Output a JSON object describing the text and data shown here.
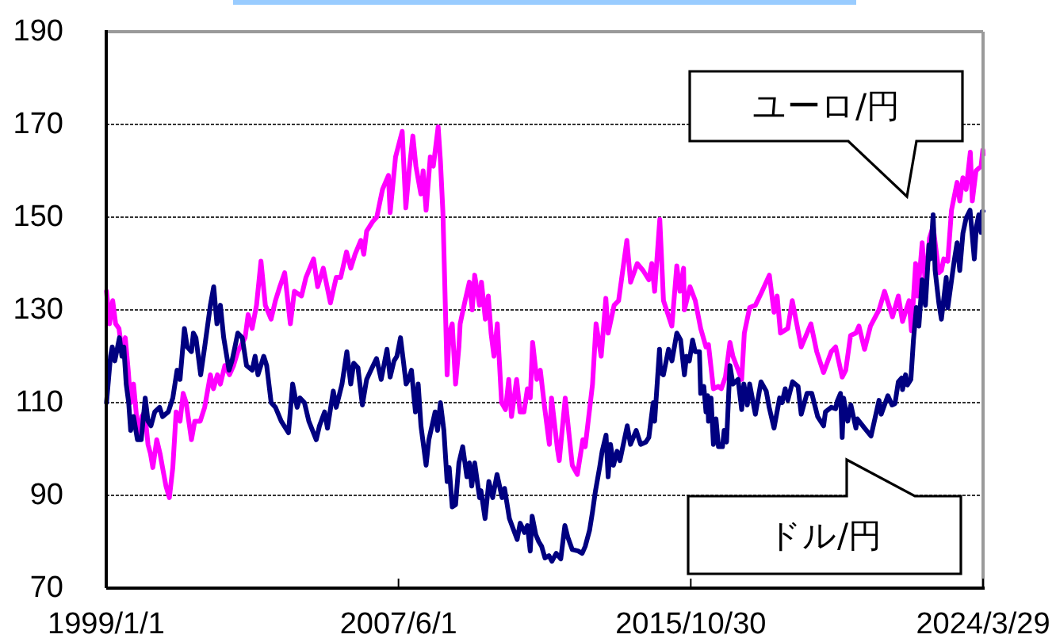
{
  "chart_data": {
    "type": "line",
    "xlim": [
      "1999-01-01",
      "2024-03-29"
    ],
    "xticks": [
      {
        "value": "1999-01-01",
        "label": "1999/1/1"
      },
      {
        "value": "2007-06-01",
        "label": "2007/6/1"
      },
      {
        "value": "2015-10-30",
        "label": "2015/10/30"
      },
      {
        "value": "2024-03-29",
        "label": "2024/3/29"
      }
    ],
    "ylim": [
      70,
      190
    ],
    "yticks": [
      70,
      90,
      110,
      130,
      150,
      170,
      190
    ],
    "grid": "y",
    "series": [
      {
        "name": "ユーロ/円",
        "color": "#ff00ff",
        "x": [
          "1999-01-04",
          "1999-02-05",
          "1999-03-10",
          "1999-04-10",
          "1999-05-15",
          "1999-06-15",
          "1999-07-20",
          "1999-08-20",
          "1999-09-15",
          "1999-10-15",
          "1999-11-20",
          "1999-12-15",
          "2000-01-10",
          "2000-02-10",
          "2000-03-15",
          "2000-04-10",
          "2000-05-05",
          "2000-06-15",
          "2000-07-20",
          "2000-08-15",
          "2000-09-20",
          "2000-10-26",
          "2000-12-01",
          "2001-01-05",
          "2001-02-15",
          "2001-03-20",
          "2001-04-20",
          "2001-06-15",
          "2001-07-20",
          "2001-09-15",
          "2001-11-01",
          "2001-12-31",
          "2002-02-01",
          "2002-03-15",
          "2002-04-15",
          "2002-06-01",
          "2002-07-20",
          "2002-09-01",
          "2002-10-15",
          "2002-12-31",
          "2003-02-01",
          "2003-03-15",
          "2003-04-30",
          "2003-06-16",
          "2003-08-01",
          "2003-09-30",
          "2003-11-15",
          "2003-12-31",
          "2004-02-20",
          "2004-04-20",
          "2004-06-01",
          "2004-08-15",
          "2004-10-01",
          "2004-12-20",
          "2005-02-01",
          "2005-04-01",
          "2005-06-15",
          "2005-08-15",
          "2005-10-01",
          "2005-12-01",
          "2006-01-15",
          "2006-03-01",
          "2006-05-01",
          "2006-06-01",
          "2006-07-01",
          "2006-09-01",
          "2006-10-15",
          "2006-12-15",
          "2007-02-15",
          "2007-03-05",
          "2007-05-01",
          "2007-07-10",
          "2007-08-17",
          "2007-09-20",
          "2007-10-30",
          "2007-12-01",
          "2008-01-22",
          "2008-02-15",
          "2008-03-17",
          "2008-04-30",
          "2008-06-01",
          "2008-07-22",
          "2008-08-15",
          "2008-09-10",
          "2008-10-24",
          "2008-11-15",
          "2008-12-17",
          "2009-01-21",
          "2009-02-25",
          "2009-03-10",
          "2009-05-01",
          "2009-06-15",
          "2009-07-15",
          "2009-08-10",
          "2009-09-30",
          "2009-10-20",
          "2009-11-30",
          "2009-12-31",
          "2010-01-29",
          "2010-03-01",
          "2010-04-05",
          "2010-05-20",
          "2010-06-30",
          "2010-08-03",
          "2010-09-01",
          "2010-10-25",
          "2010-11-30",
          "2011-01-10",
          "2011-02-15",
          "2011-03-17",
          "2011-04-11",
          "2011-05-25",
          "2011-07-01",
          "2011-08-15",
          "2011-10-04",
          "2011-10-27",
          "2011-12-28",
          "2012-01-16",
          "2012-03-19",
          "2012-06-01",
          "2012-07-24",
          "2012-09-20",
          "2012-10-15",
          "2012-12-31",
          "2013-02-06",
          "2013-04-01",
          "2013-05-20",
          "2013-06-13",
          "2013-08-15",
          "2013-10-01",
          "2013-12-27",
          "2014-02-04",
          "2014-04-15",
          "2014-06-15",
          "2014-08-15",
          "2014-09-15",
          "2014-10-15",
          "2014-12-08",
          "2015-01-16",
          "2015-04-14",
          "2015-06-05",
          "2015-07-08",
          "2015-08-15",
          "2015-08-24",
          "2015-10-22",
          "2015-12-16",
          "2016-02-11",
          "2016-04-07",
          "2016-05-03",
          "2016-06-24",
          "2016-08-15",
          "2016-09-15",
          "2016-10-28",
          "2016-12-15",
          "2017-01-15",
          "2017-04-17",
          "2017-05-15",
          "2017-07-10",
          "2017-09-08",
          "2017-11-06",
          "2018-02-02",
          "2018-03-23",
          "2018-04-25",
          "2018-05-30",
          "2018-08-15",
          "2018-10-01",
          "2019-01-03",
          "2019-04-15",
          "2019-06-15",
          "2019-08-26",
          "2019-11-15",
          "2019-12-31",
          "2020-03-09",
          "2020-04-15",
          "2020-06-05",
          "2020-07-31",
          "2020-09-01",
          "2020-10-30",
          "2020-12-31",
          "2021-03-31",
          "2021-05-28",
          "2021-08-20",
          "2021-10-20",
          "2021-12-03",
          "2022-02-10",
          "2022-03-07",
          "2022-04-20",
          "2022-05-12",
          "2022-06-28",
          "2022-08-02",
          "2022-09-13",
          "2022-10-21",
          "2022-12-20",
          "2023-01-16",
          "2023-02-10",
          "2023-03-24",
          "2023-05-02",
          "2023-06-30",
          "2023-07-28",
          "2023-08-30",
          "2023-10-03",
          "2023-11-16",
          "2023-12-07",
          "2024-01-15",
          "2024-03-08",
          "2024-03-27",
          "2024-03-29"
        ],
        "values": [
          134,
          127,
          132,
          127,
          126,
          121,
          124,
          117,
          110,
          114,
          106,
          103,
          107,
          108,
          101,
          99,
          96,
          102,
          99,
          96,
          92,
          89.5,
          96,
          108,
          106,
          112,
          110,
          102,
          106,
          106,
          109,
          116,
          113,
          116,
          114,
          118,
          116,
          118,
          121,
          124,
          129,
          126,
          131,
          140.5,
          131,
          128,
          132,
          135,
          138,
          127,
          134,
          133,
          137,
          141,
          135,
          139,
          131.5,
          137,
          137,
          142.5,
          139,
          142,
          145,
          142,
          147,
          149,
          150,
          156,
          159,
          151,
          163,
          168.5,
          152,
          160,
          167.5,
          161,
          155,
          160,
          151.5,
          163,
          161,
          169.5,
          162,
          151,
          116,
          125,
          127,
          114,
          122,
          127,
          132,
          136,
          130,
          137.5,
          131,
          136,
          128,
          133,
          125,
          120,
          127,
          110,
          108.5,
          115,
          107,
          115,
          108,
          108,
          113,
          111,
          123,
          115,
          117,
          109,
          101,
          111,
          100,
          97.5,
          111,
          96.5,
          94.5,
          102,
          100.5,
          114,
          127,
          120,
          132.5,
          125,
          131,
          132,
          145,
          136,
          140,
          138.5,
          136.5,
          140,
          134,
          149.5,
          132,
          126.5,
          139.5,
          134,
          139,
          130,
          135,
          132,
          126,
          122,
          122.5,
          113,
          113.5,
          113,
          115.5,
          123,
          120,
          115,
          125,
          130.5,
          131,
          133.5,
          137.5,
          129.5,
          133,
          125,
          126,
          132,
          122,
          127,
          121,
          116.5,
          121,
          122,
          115.5,
          117,
          124.5,
          125,
          126.5,
          121.5,
          126.5,
          130,
          134,
          128.5,
          133,
          127.5,
          132,
          125.5,
          140,
          133,
          144.5,
          135,
          145.5,
          148,
          138,
          138.5,
          141,
          140.5,
          151.5,
          157.5,
          153.5,
          158.5,
          156,
          164,
          153.5,
          160,
          161,
          164.5,
          163.5
        ]
      },
      {
        "name": "ドル/円",
        "color": "#000080",
        "x": [
          "1999-01-04",
          "1999-01-25",
          "1999-02-15",
          "1999-03-05",
          "1999-04-01",
          "1999-05-20",
          "1999-06-15",
          "1999-07-05",
          "1999-07-30",
          "1999-08-25",
          "1999-09-15",
          "1999-10-15",
          "1999-11-25",
          "2000-01-04",
          "2000-02-15",
          "2000-03-15",
          "2000-04-15",
          "2000-05-25",
          "2000-07-15",
          "2000-08-15",
          "2000-10-15",
          "2000-12-01",
          "2001-01-15",
          "2001-02-15",
          "2001-04-02",
          "2001-05-01",
          "2001-06-15",
          "2001-07-05",
          "2001-08-01",
          "2001-09-20",
          "2001-11-01",
          "2001-12-31",
          "2002-02-04",
          "2002-03-10",
          "2002-04-15",
          "2002-05-20",
          "2002-07-15",
          "2002-08-15",
          "2002-09-15",
          "2002-10-15",
          "2002-12-01",
          "2003-01-15",
          "2003-03-15",
          "2003-04-15",
          "2003-05-15",
          "2003-07-15",
          "2003-08-15",
          "2003-10-01",
          "2003-11-15",
          "2004-01-15",
          "2004-03-31",
          "2004-05-14",
          "2004-06-30",
          "2004-07-30",
          "2004-09-15",
          "2004-10-31",
          "2005-01-17",
          "2005-02-20",
          "2005-04-15",
          "2005-05-15",
          "2005-07-15",
          "2005-08-15",
          "2005-10-15",
          "2005-12-05",
          "2006-01-15",
          "2006-02-15",
          "2006-04-01",
          "2006-05-17",
          "2006-07-01",
          "2006-08-15",
          "2006-10-13",
          "2006-12-01",
          "2007-01-31",
          "2007-03-05",
          "2007-04-15",
          "2007-05-15",
          "2007-06-22",
          "2007-07-25",
          "2007-08-20",
          "2007-09-15",
          "2007-10-15",
          "2007-11-26",
          "2007-12-25",
          "2008-01-23",
          "2008-03-17",
          "2008-04-15",
          "2008-06-20",
          "2008-07-15",
          "2008-08-15",
          "2008-09-20",
          "2008-10-24",
          "2008-11-15",
          "2008-12-17",
          "2009-01-21",
          "2009-02-25",
          "2009-04-06",
          "2009-05-20",
          "2009-06-15",
          "2009-07-10",
          "2009-08-10",
          "2009-09-30",
          "2009-10-15",
          "2009-11-27",
          "2010-01-06",
          "2010-02-15",
          "2010-04-02",
          "2010-05-25",
          "2010-06-20",
          "2010-08-10",
          "2010-09-15",
          "2010-10-31",
          "2010-12-01",
          "2011-01-15",
          "2011-02-15",
          "2011-03-17",
          "2011-04-06",
          "2011-05-15",
          "2011-06-15",
          "2011-07-15",
          "2011-08-19",
          "2011-09-30",
          "2011-10-31",
          "2011-12-15",
          "2012-02-01",
          "2012-03-15",
          "2012-04-15",
          "2012-06-01",
          "2012-08-01",
          "2012-09-13",
          "2012-10-15",
          "2012-11-30",
          "2012-12-31",
          "2013-01-31",
          "2013-03-15",
          "2013-04-11",
          "2013-05-22",
          "2013-06-13",
          "2013-07-08",
          "2013-08-08",
          "2013-09-15",
          "2013-10-15",
          "2013-12-31",
          "2014-02-03",
          "2014-04-04",
          "2014-05-21",
          "2014-07-15",
          "2014-08-15",
          "2014-09-30",
          "2014-10-15",
          "2014-12-05",
          "2014-12-16",
          "2015-01-15",
          "2015-03-10",
          "2015-04-15",
          "2015-06-05",
          "2015-07-15",
          "2015-08-24",
          "2015-09-15",
          "2015-10-15",
          "2015-11-18",
          "2015-12-15",
          "2016-01-29",
          "2016-02-11",
          "2016-03-15",
          "2016-04-07",
          "2016-04-25",
          "2016-05-03",
          "2016-05-30",
          "2016-06-24",
          "2016-07-21",
          "2016-08-16",
          "2016-09-27",
          "2016-10-15",
          "2016-11-09",
          "2016-12-15",
          "2017-01-15",
          "2017-03-10",
          "2017-04-17",
          "2017-05-10",
          "2017-06-15",
          "2017-07-10",
          "2017-09-08",
          "2017-11-06",
          "2017-12-31",
          "2018-01-31",
          "2018-03-23",
          "2018-05-21",
          "2018-06-15",
          "2018-07-19",
          "2018-08-15",
          "2018-10-04",
          "2018-12-01",
          "2019-01-03",
          "2019-03-05",
          "2019-04-24",
          "2019-06-25",
          "2019-08-26",
          "2019-09-15",
          "2019-11-15",
          "2019-12-31",
          "2020-01-17",
          "2020-02-20",
          "2020-03-09",
          "2020-03-24",
          "2020-05-06",
          "2020-06-08",
          "2020-07-31",
          "2020-08-15",
          "2020-10-30",
          "2021-01-06",
          "2021-03-31",
          "2021-04-23",
          "2021-07-02",
          "2021-08-15",
          "2021-09-15",
          "2021-10-20",
          "2021-11-24",
          "2021-12-03",
          "2022-01-04",
          "2022-01-24",
          "2022-03-01",
          "2022-03-28",
          "2022-04-28",
          "2022-05-24",
          "2022-06-28",
          "2022-08-01",
          "2022-09-07",
          "2022-09-22",
          "2022-10-21",
          "2022-11-11",
          "2022-12-20",
          "2023-01-16",
          "2023-03-08",
          "2023-03-24",
          "2023-05-30",
          "2023-06-30",
          "2023-07-28",
          "2023-08-30",
          "2023-10-03",
          "2023-11-13",
          "2023-12-28",
          "2024-01-19",
          "2024-02-13",
          "2024-03-08",
          "2024-03-19",
          "2024-03-29"
        ],
        "values": [
          110,
          115,
          120,
          122,
          119,
          124,
          120,
          122,
          114,
          110,
          104,
          107,
          102,
          102,
          111,
          106,
          105,
          108,
          109,
          107,
          108,
          111,
          117,
          115,
          126,
          122,
          121,
          125,
          124,
          116,
          122,
          131,
          135,
          127,
          131,
          124,
          117,
          119,
          122,
          125,
          124,
          118,
          117,
          120,
          116,
          120,
          118,
          110,
          109,
          106,
          103.5,
          114,
          109,
          111,
          110,
          106,
          102,
          105,
          108,
          104.5,
          112.5,
          109,
          114,
          121,
          114,
          118.5,
          117.5,
          109.5,
          115,
          117,
          119.5,
          115,
          121.5,
          115.5,
          119,
          120,
          124,
          118.5,
          114,
          115,
          117,
          108,
          114,
          105,
          96.5,
          102,
          108,
          104,
          110,
          104,
          93,
          96,
          87.5,
          88,
          97,
          100.5,
          94,
          97,
          92,
          97,
          89.5,
          91,
          85,
          93,
          89.5,
          94.5,
          89.5,
          91.5,
          85,
          83,
          80.5,
          84,
          82,
          83.5,
          78,
          85.5,
          81.5,
          80,
          79,
          76.5,
          77,
          75.8,
          77.5,
          76.3,
          83.5,
          81,
          78.3,
          78,
          77.5,
          79,
          82.5,
          86.5,
          91,
          96,
          99.5,
          103,
          94,
          101,
          96.5,
          99.5,
          97.5,
          105,
          101,
          104,
          101,
          101.5,
          102.5,
          110,
          106,
          121.5,
          116.5,
          116,
          121.5,
          119,
          125,
          123.5,
          116,
          120,
          119,
          123.5,
          121,
          121,
          112,
          113.5,
          108,
          111.5,
          106,
          111,
          101,
          106.5,
          100.5,
          100.5,
          104,
          101.5,
          118,
          114,
          115,
          108.5,
          114,
          109.5,
          114,
          107.5,
          114.5,
          112.5,
          109,
          104.5,
          111,
          110,
          113,
          110.5,
          114.5,
          113.5,
          107.5,
          112,
          112,
          107,
          105,
          108,
          109,
          108.7,
          110.3,
          112,
          102.5,
          111,
          106,
          109.5,
          104.5,
          106.5,
          104.5,
          102.8,
          110.5,
          107.5,
          111.5,
          109.5,
          109.8,
          114.5,
          115.3,
          112.8,
          116,
          113.8,
          115,
          123.5,
          130.5,
          126.5,
          136.5,
          131,
          144,
          141,
          150.5,
          138.5,
          131.5,
          128,
          137,
          130.5,
          140.5,
          144.5,
          138.5,
          146.5,
          149.8,
          151.5,
          141,
          148,
          150.5,
          146.7,
          151.2,
          151.3
        ]
      }
    ]
  }
}
